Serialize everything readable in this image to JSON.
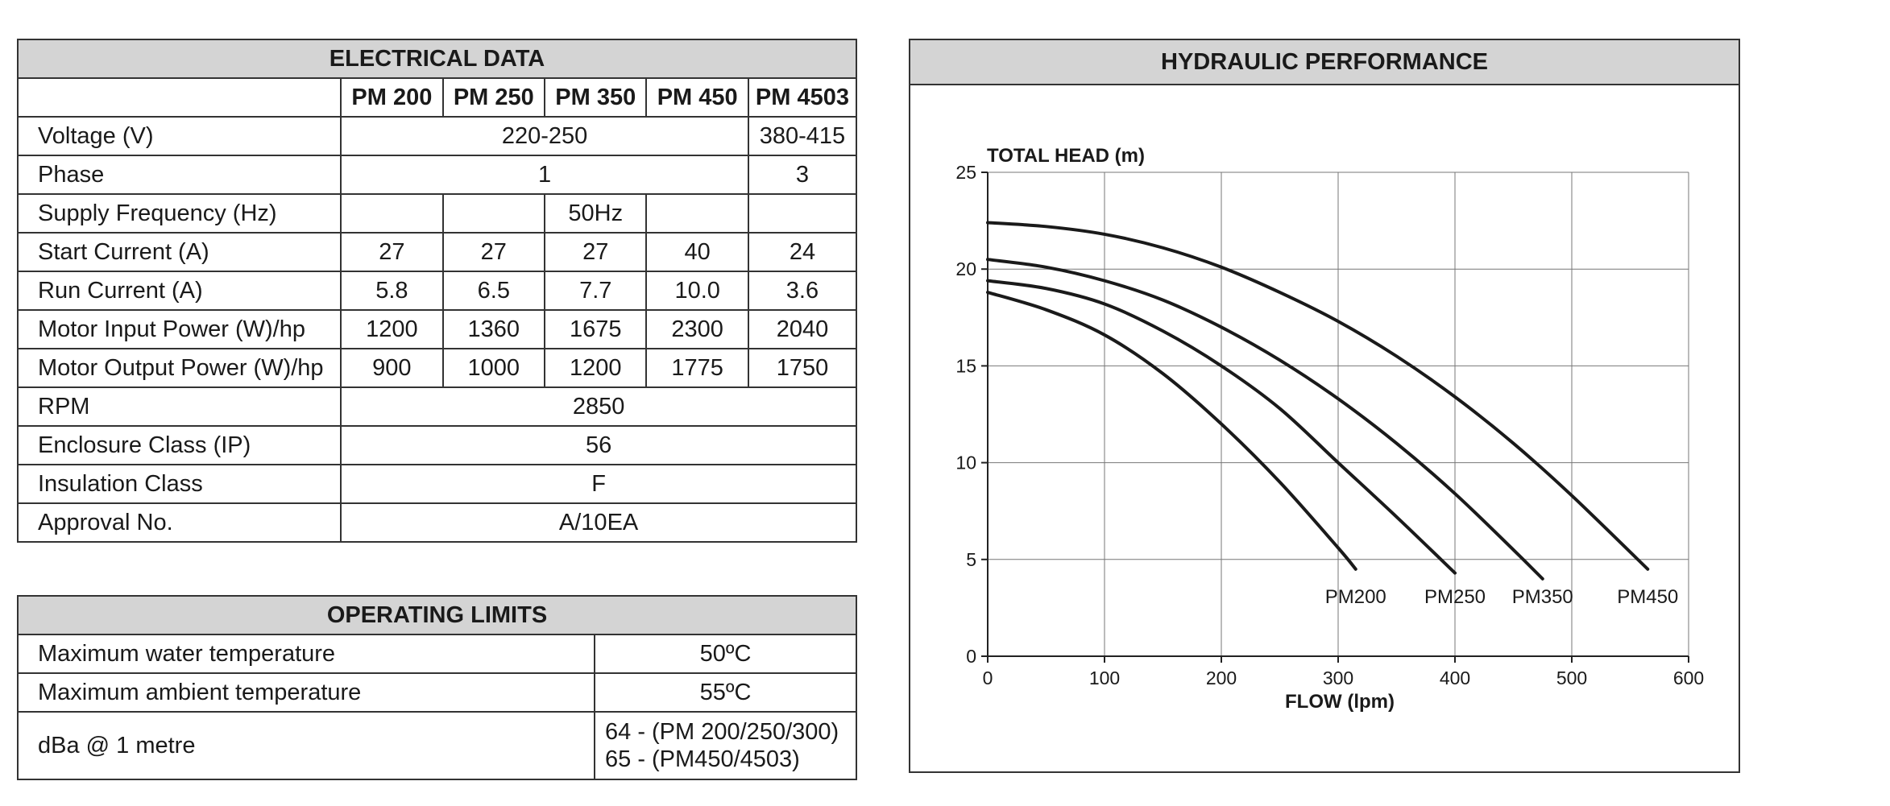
{
  "electrical": {
    "title": "ELECTRICAL DATA",
    "models": [
      "PM 200",
      "PM 250",
      "PM 350",
      "PM 450",
      "PM 4503"
    ],
    "voltage_label": "Voltage (V)",
    "voltage_single": "220-250",
    "voltage_three": "380-415",
    "phase_label": "Phase",
    "phase_single": "1",
    "phase_three": "3",
    "freq_label": "Supply Frequency (Hz)",
    "freq_value": "50Hz",
    "start_label": "Start Current (A)",
    "start_values": [
      "27",
      "27",
      "27",
      "40",
      "24"
    ],
    "run_label": "Run Current (A)",
    "run_values": [
      "5.8",
      "6.5",
      "7.7",
      "10.0",
      "3.6"
    ],
    "input_label": "Motor Input Power (W)/hp",
    "input_values": [
      "1200",
      "1360",
      "1675",
      "2300",
      "2040"
    ],
    "output_label": "Motor Output Power (W)/hp",
    "output_values": [
      "900",
      "1000",
      "1200",
      "1775",
      "1750"
    ],
    "rpm_label": "RPM",
    "rpm_value": "2850",
    "ip_label": "Enclosure Class (IP)",
    "ip_value": "56",
    "ins_label": "Insulation Class",
    "ins_value": "F",
    "appr_label": "Approval No.",
    "appr_value": "A/10EA"
  },
  "operating": {
    "title": "OPERATING LIMITS",
    "water_label": "Maximum water temperature",
    "water_value": "50ºC",
    "ambient_label": "Maximum ambient temperature",
    "ambient_value": "55ºC",
    "dba_label": "dBa @ 1 metre",
    "dba_value_1": "64 - (PM 200/250/300)",
    "dba_value_2": "65 - (PM450/4503)"
  },
  "hydraulic": {
    "title": "HYDRAULIC PERFORMANCE"
  },
  "chart_data": {
    "type": "line",
    "title": "",
    "xlabel": "FLOW (lpm)",
    "ylabel": "TOTAL HEAD (m)",
    "xlim": [
      0,
      600
    ],
    "ylim": [
      0,
      25
    ],
    "xticks": [
      0,
      100,
      200,
      300,
      400,
      500,
      600
    ],
    "yticks": [
      0,
      5,
      10,
      15,
      20,
      25
    ],
    "grid": true,
    "series": [
      {
        "name": "PM200",
        "x": [
          0,
          50,
          100,
          150,
          200,
          250,
          300,
          315
        ],
        "y": [
          18.8,
          17.9,
          16.6,
          14.6,
          12.0,
          9.0,
          5.6,
          4.5
        ]
      },
      {
        "name": "PM250",
        "x": [
          0,
          50,
          100,
          150,
          200,
          250,
          300,
          350,
          400
        ],
        "y": [
          19.4,
          19.0,
          18.2,
          16.8,
          15.0,
          12.8,
          10.0,
          7.2,
          4.3
        ]
      },
      {
        "name": "PM350",
        "x": [
          0,
          50,
          100,
          150,
          200,
          250,
          300,
          350,
          400,
          450,
          475
        ],
        "y": [
          20.5,
          20.1,
          19.4,
          18.4,
          17.0,
          15.3,
          13.3,
          11.0,
          8.4,
          5.5,
          4.0
        ]
      },
      {
        "name": "PM450",
        "x": [
          0,
          50,
          100,
          150,
          200,
          250,
          300,
          350,
          400,
          450,
          500,
          565
        ],
        "y": [
          22.4,
          22.2,
          21.8,
          21.1,
          20.1,
          18.8,
          17.3,
          15.5,
          13.4,
          11.0,
          8.3,
          4.5
        ]
      }
    ]
  }
}
